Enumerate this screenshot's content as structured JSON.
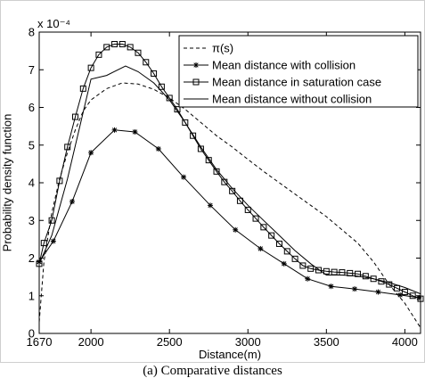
{
  "caption": "(a) Comparative distances",
  "chart_data": {
    "type": "line",
    "xlabel": "Distance(m)",
    "ylabel": "Probability density function",
    "y_exponent": "x 10⁻⁴",
    "xlim": [
      1670,
      4100
    ],
    "ylim": [
      0,
      8
    ],
    "x_ticks": [
      1670,
      2000,
      2500,
      3000,
      3500,
      4000
    ],
    "y_ticks": [
      0,
      1,
      2,
      3,
      4,
      5,
      6,
      7,
      8
    ],
    "grid": false,
    "legend_position": "top-right",
    "series": [
      {
        "name": "π(s)",
        "style": "dashed",
        "marker": "none",
        "x": [
          1670,
          1700,
          1750,
          1800,
          1850,
          1900,
          1950,
          2000,
          2100,
          2200,
          2300,
          2400,
          2500,
          2600,
          2700,
          2800,
          2900,
          3000,
          3100,
          3200,
          3300,
          3400,
          3500,
          3600,
          3700,
          3800,
          3900,
          4000,
          4100
        ],
        "y": [
          0.3,
          1.9,
          3.2,
          4.1,
          4.8,
          5.4,
          5.9,
          6.2,
          6.5,
          6.65,
          6.62,
          6.48,
          6.25,
          5.95,
          5.6,
          5.25,
          4.95,
          4.62,
          4.3,
          4.0,
          3.7,
          3.4,
          3.1,
          2.75,
          2.4,
          1.9,
          1.3,
          0.8,
          0.15
        ]
      },
      {
        "name": "Mean distance with collision",
        "style": "solid",
        "marker": "asterisk",
        "x": [
          1670,
          1760,
          1880,
          2000,
          2150,
          2280,
          2430,
          2590,
          2760,
          2920,
          3080,
          3230,
          3380,
          3530,
          3680,
          3830,
          3970,
          4090
        ],
        "y": [
          1.9,
          2.45,
          3.5,
          4.8,
          5.4,
          5.35,
          4.9,
          4.15,
          3.4,
          2.75,
          2.25,
          1.85,
          1.45,
          1.25,
          1.18,
          1.1,
          1.02,
          0.95
        ]
      },
      {
        "name": "Mean distance in saturation case",
        "style": "solid",
        "marker": "square",
        "x": [
          1670,
          1700,
          1750,
          1800,
          1850,
          1900,
          1950,
          2000,
          2050,
          2100,
          2150,
          2200,
          2250,
          2300,
          2350,
          2400,
          2450,
          2500,
          2550,
          2600,
          2650,
          2700,
          2750,
          2800,
          2850,
          2900,
          2950,
          3000,
          3050,
          3100,
          3150,
          3200,
          3250,
          3300,
          3350,
          3400,
          3450,
          3500,
          3550,
          3600,
          3650,
          3700,
          3750,
          3800,
          3850,
          3900,
          3950,
          4000,
          4050,
          4100
        ],
        "y": [
          1.85,
          2.4,
          3.0,
          4.05,
          4.95,
          5.75,
          6.5,
          7.05,
          7.4,
          7.6,
          7.68,
          7.68,
          7.6,
          7.45,
          7.2,
          6.9,
          6.55,
          6.25,
          5.95,
          5.6,
          5.25,
          4.9,
          4.6,
          4.3,
          4.02,
          3.78,
          3.52,
          3.28,
          3.05,
          2.82,
          2.6,
          2.38,
          2.18,
          1.98,
          1.8,
          1.72,
          1.68,
          1.65,
          1.63,
          1.62,
          1.6,
          1.58,
          1.52,
          1.45,
          1.38,
          1.3,
          1.2,
          1.1,
          1.0,
          0.92
        ]
      },
      {
        "name": "Mean distance without collision",
        "style": "solid",
        "marker": "none",
        "x": [
          1670,
          1750,
          1850,
          2000,
          2100,
          2220,
          2300,
          2400,
          2500,
          2600,
          2700,
          2800,
          2900,
          3000,
          3100,
          3200,
          3300,
          3400,
          3500,
          3600,
          3700,
          3800,
          3900,
          4000,
          4100
        ],
        "y": [
          1.85,
          2.6,
          4.1,
          6.75,
          6.85,
          7.1,
          6.95,
          6.65,
          6.2,
          5.6,
          4.95,
          4.35,
          3.85,
          3.4,
          3.0,
          2.6,
          2.2,
          1.85,
          1.55,
          1.55,
          1.52,
          1.45,
          1.35,
          1.22,
          1.05
        ]
      }
    ]
  }
}
